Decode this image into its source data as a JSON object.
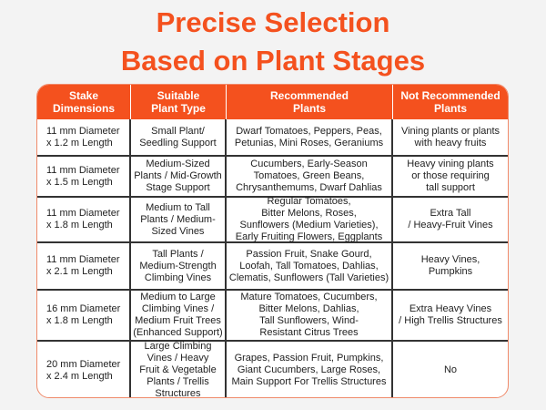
{
  "title": {
    "line1": "Precise Selection",
    "line2": "Based on Plant Stages"
  },
  "colors": {
    "accent": "#f4511e",
    "background": "#f3f3f3"
  },
  "table": {
    "headers": [
      "Stake\nDimensions",
      "Suitable\nPlant Type",
      "Recommended\nPlants",
      "Not Recommended\nPlants"
    ],
    "rows": [
      [
        "11 mm Diameter\nx 1.2 m Length",
        "Small Plant/\nSeedling Support",
        "Dwarf Tomatoes, Peppers, Peas,\nPetunias, Mini Roses, Geraniums",
        "Vining plants or plants\nwith heavy fruits"
      ],
      [
        "11 mm Diameter\nx 1.5 m Length",
        "Medium-Sized\nPlants / Mid-Growth\nStage Support",
        "Cucumbers, Early-Season\nTomatoes, Green Beans,\nChrysanthemums, Dwarf Dahlias",
        "Heavy vining plants\nor those requiring\ntall support"
      ],
      [
        "11 mm Diameter\nx 1.8 m Length",
        "Medium to Tall\nPlants / Medium-\nSized Vines",
        "Regular Tomatoes,\nBitter Melons, Roses,\nSunflowers (Medium Varieties),\nEarly Fruiting Flowers, Eggplants",
        "Extra Tall\n/ Heavy-Fruit Vines"
      ],
      [
        "11 mm Diameter\nx 2.1 m Length",
        "Tall Plants /\nMedium-Strength\nClimbing Vines",
        "Passion Fruit, Snake Gourd,\nLoofah, Tall Tomatoes, Dahlias,\nClematis, Sunflowers (Tall Varieties)",
        "Heavy Vines,\nPumpkins"
      ],
      [
        "16 mm Diameter\nx 1.8 m Length",
        "Medium to Large\nClimbing Vines /\nMedium Fruit Trees\n(Enhanced Support)",
        "Mature Tomatoes, Cucumbers,\nBitter Melons, Dahlias,\nTall Sunflowers, Wind-\nResistant Citrus Trees",
        "Extra Heavy Vines\n/ High Trellis Structures"
      ],
      [
        "20 mm Diameter\nx 2.4 m Length",
        "Large Climbing\nVines / Heavy\nFruit & Vegetable\nPlants / Trellis\nStructures",
        "Grapes, Passion Fruit, Pumpkins,\nGiant Cucumbers, Large Roses,\nMain Support For Trellis Structures",
        "No"
      ]
    ]
  }
}
